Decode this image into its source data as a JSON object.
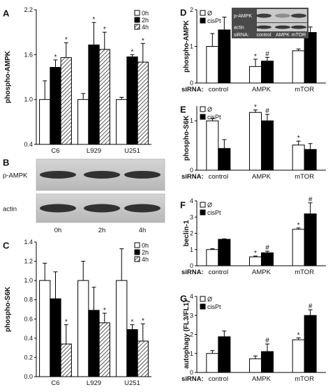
{
  "chart_data": [
    {
      "panel": "A",
      "type": "bar",
      "ylabel": "phospho-AMPK",
      "ylim": [
        0.4,
        2.2
      ],
      "yticks": [
        "0.4",
        "1.0",
        "1.6",
        "2.2"
      ],
      "yticks_values": [
        0.4,
        1.0,
        1.6,
        2.2
      ],
      "categories": [
        "C6",
        "L929",
        "U251"
      ],
      "series": [
        {
          "name": "0h",
          "fill": "white",
          "values": [
            1.0,
            1.0,
            1.0
          ],
          "errors": [
            0.25,
            0.08,
            0.03
          ],
          "stars": [
            false,
            false,
            false
          ],
          "hashes": [
            false,
            false,
            false
          ]
        },
        {
          "name": "2h",
          "fill": "black",
          "values": [
            1.43,
            1.73,
            1.57
          ],
          "errors": [
            0.1,
            0.3,
            0.03
          ],
          "stars": [
            true,
            true,
            true
          ],
          "hashes": [
            false,
            false,
            false
          ]
        },
        {
          "name": "4h",
          "fill": "hatch",
          "values": [
            1.56,
            1.67,
            1.5
          ],
          "errors": [
            0.2,
            0.23,
            0.25
          ],
          "stars": [
            true,
            true,
            true
          ],
          "hashes": [
            false,
            false,
            false
          ]
        }
      ]
    },
    {
      "panel": "C",
      "type": "bar",
      "ylabel": "phospho-S6K",
      "ylim": [
        0.0,
        1.4
      ],
      "yticks": [
        "0.0",
        "0.2",
        "0.4",
        "0.6",
        "0.8",
        "1.0",
        "1.2",
        "1.4"
      ],
      "yticks_values": [
        0.0,
        0.2,
        0.4,
        0.6,
        0.8,
        1.0,
        1.2,
        1.4
      ],
      "categories": [
        "C6",
        "L929",
        "U251"
      ],
      "series": [
        {
          "name": "0h",
          "fill": "white",
          "values": [
            1.0,
            1.0,
            1.0
          ],
          "errors": [
            0.18,
            0.2,
            0.33
          ],
          "stars": [
            false,
            false,
            false
          ],
          "hashes": [
            false,
            false,
            false
          ]
        },
        {
          "name": "2h",
          "fill": "black",
          "values": [
            0.81,
            0.69,
            0.49
          ],
          "errors": [
            0.28,
            0.24,
            0.05
          ],
          "stars": [
            false,
            false,
            true
          ],
          "hashes": [
            false,
            false,
            false
          ]
        },
        {
          "name": "4h",
          "fill": "hatch",
          "values": [
            0.34,
            0.56,
            0.37
          ],
          "errors": [
            0.2,
            0.1,
            0.18
          ],
          "stars": [
            true,
            true,
            true
          ],
          "hashes": [
            false,
            false,
            false
          ]
        }
      ]
    },
    {
      "panel": "D",
      "type": "bar",
      "ylabel": "phospho-AMPK",
      "ylim": [
        0,
        2
      ],
      "yticks": [
        "0",
        "1",
        "2"
      ],
      "yticks_values": [
        0,
        1,
        2
      ],
      "xlabel": "siRNA:",
      "categories": [
        "control",
        "AMPK",
        "mTOR"
      ],
      "series": [
        {
          "name": "Ø",
          "fill": "white",
          "values": [
            1.0,
            0.45,
            0.88
          ],
          "errors": [
            0.35,
            0.2,
            0.05
          ],
          "stars": [
            false,
            true,
            false
          ],
          "hashes": [
            false,
            false,
            false
          ]
        },
        {
          "name": "cisPt",
          "fill": "black",
          "values": [
            1.45,
            0.6,
            1.38
          ],
          "errors": [
            0.35,
            0.1,
            0.15
          ],
          "stars": [
            false,
            false,
            false
          ],
          "hashes": [
            false,
            true,
            false
          ]
        }
      ]
    },
    {
      "panel": "E",
      "type": "bar",
      "ylabel": "phospho-S6K",
      "ylim": [
        0,
        1.3
      ],
      "yticks": [
        "0",
        "1"
      ],
      "yticks_values": [
        0,
        1
      ],
      "xlabel": "siRNA:",
      "categories": [
        "control",
        "AMPK",
        "mTOR"
      ],
      "series": [
        {
          "name": "Ø",
          "fill": "white",
          "values": [
            1.0,
            1.17,
            0.51
          ],
          "errors": [
            0.05,
            0.05,
            0.08
          ],
          "stars": [
            false,
            true,
            true
          ],
          "hashes": [
            false,
            false,
            false
          ]
        },
        {
          "name": "cisPt",
          "fill": "black",
          "values": [
            0.44,
            1.0,
            0.42
          ],
          "errors": [
            0.18,
            0.13,
            0.12
          ],
          "stars": [
            false,
            false,
            false
          ],
          "hashes": [
            false,
            true,
            false
          ]
        }
      ]
    },
    {
      "panel": "F",
      "type": "bar",
      "ylabel": "beclin-1",
      "ylim": [
        0,
        4
      ],
      "yticks": [
        "0",
        "1",
        "2",
        "3",
        "4"
      ],
      "yticks_values": [
        0,
        1,
        2,
        3,
        4
      ],
      "xlabel": "siRNA:",
      "categories": [
        "control",
        "AMPK",
        "mTOR"
      ],
      "series": [
        {
          "name": "Ø",
          "fill": "white",
          "values": [
            1.0,
            0.55,
            2.25
          ],
          "errors": [
            0.05,
            0.05,
            0.08
          ],
          "stars": [
            false,
            true,
            true
          ],
          "hashes": [
            false,
            false,
            false
          ]
        },
        {
          "name": "cisPt",
          "fill": "black",
          "values": [
            1.63,
            0.8,
            3.2
          ],
          "errors": [
            0.03,
            0.1,
            0.68
          ],
          "stars": [
            false,
            false,
            false
          ],
          "hashes": [
            false,
            true,
            true
          ]
        }
      ]
    },
    {
      "panel": "G",
      "type": "bar",
      "ylabel": "autophagy (FL3/FL1)",
      "ylim": [
        0,
        4
      ],
      "yticks": [
        "0",
        "1",
        "2",
        "3",
        "4"
      ],
      "yticks_values": [
        0,
        1,
        2,
        3,
        4
      ],
      "xlabel": "siRNA:",
      "categories": [
        "control",
        "AMPK",
        "mTOR"
      ],
      "series": [
        {
          "name": "Ø",
          "fill": "white",
          "values": [
            1.0,
            0.72,
            1.72
          ],
          "errors": [
            0.15,
            0.15,
            0.1
          ],
          "stars": [
            false,
            false,
            true
          ],
          "hashes": [
            false,
            false,
            false
          ]
        },
        {
          "name": "cisPt",
          "fill": "black",
          "values": [
            1.88,
            1.1,
            3.0
          ],
          "errors": [
            0.3,
            0.4,
            0.3
          ],
          "stars": [
            false,
            false,
            false
          ],
          "hashes": [
            false,
            true,
            true
          ]
        }
      ]
    }
  ],
  "panel_b": {
    "letter": "B",
    "rows": [
      "p-AMPK",
      "actin"
    ],
    "lanes": [
      "0h",
      "2h",
      "4h"
    ]
  },
  "panel_d_inset": {
    "rows": [
      "p-AMPK",
      "actin"
    ],
    "sirna_label": "siRNA:",
    "lanes": [
      "control",
      "AMPK",
      "mTOR"
    ]
  },
  "colors": {
    "bar_black": "#000000",
    "bar_white": "#ffffff",
    "blot_bg": "#c8c8c8",
    "band": "#1c1c1c"
  }
}
